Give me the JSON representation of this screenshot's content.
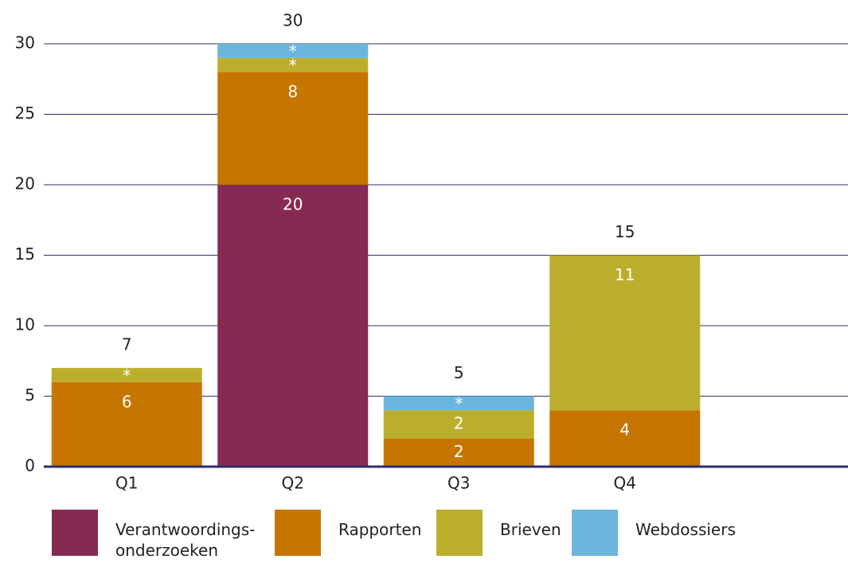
{
  "chart_data": {
    "type": "stacked_bar",
    "categories": [
      "Q1",
      "Q2",
      "Q3",
      "Q4"
    ],
    "series": [
      {
        "name": "Verantwoordings-onderzoeken",
        "color": "#862a52",
        "values": [
          null,
          20,
          null,
          null
        ]
      },
      {
        "name": "Rapporten",
        "color": "#c57500",
        "values": [
          6,
          8,
          2,
          4
        ]
      },
      {
        "name": "Brieven",
        "color": "#bcae2d",
        "values": [
          1,
          1,
          2,
          11
        ],
        "value_labels": [
          "*",
          "*",
          null,
          null
        ]
      },
      {
        "name": "Webdossiers",
        "color": "#6cb5dc",
        "values": [
          null,
          1,
          1,
          null
        ],
        "value_labels": [
          null,
          "*",
          "*",
          null
        ]
      }
    ],
    "totals": [
      7,
      30,
      5,
      15
    ],
    "ylim": [
      0,
      30
    ],
    "yticks": [
      0,
      5,
      10,
      15,
      20,
      25,
      30
    ],
    "grid": true
  }
}
